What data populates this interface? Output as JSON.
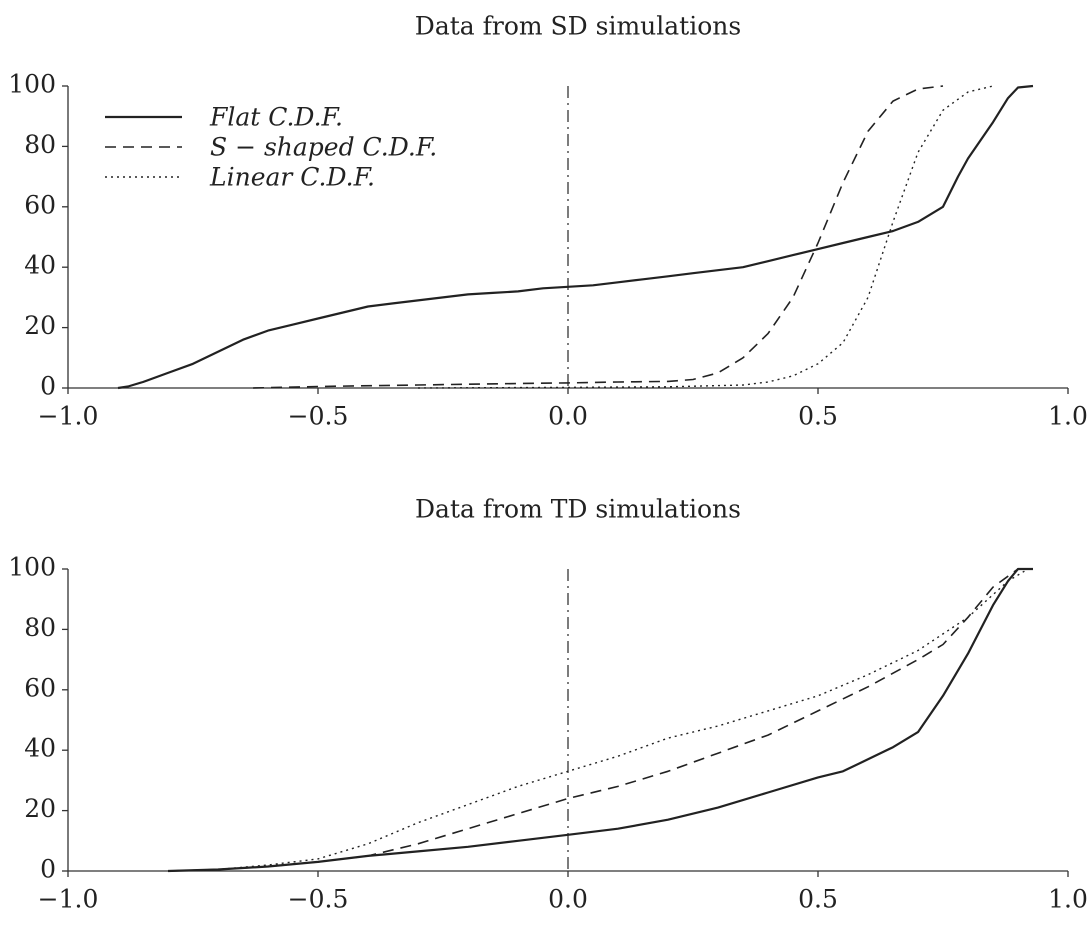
{
  "chart_data": [
    {
      "type": "line",
      "title": "Data from SD simulations",
      "xlabel": "",
      "ylabel": "",
      "xlim": [
        -1.0,
        1.0
      ],
      "ylim": [
        0,
        100
      ],
      "x_ticks": [
        "−1.0",
        "−0.5",
        "0.0",
        "0.5",
        "1.0"
      ],
      "y_ticks": [
        "0",
        "20",
        "40",
        "60",
        "80",
        "100"
      ],
      "reference_line": {
        "x": 0.0,
        "style": "dashdot"
      },
      "legend": {
        "placement": "top-left",
        "entries": [
          "Flat C.D.F.",
          "S − shaped C.D.F.",
          "Linear C.D.F."
        ]
      },
      "series": [
        {
          "name": "Flat C.D.F.",
          "style": "solid",
          "x": [
            -0.9,
            -0.88,
            -0.85,
            -0.8,
            -0.75,
            -0.7,
            -0.65,
            -0.6,
            -0.55,
            -0.5,
            -0.45,
            -0.4,
            -0.35,
            -0.3,
            -0.25,
            -0.2,
            -0.15,
            -0.1,
            -0.05,
            0.0,
            0.05,
            0.1,
            0.15,
            0.2,
            0.25,
            0.3,
            0.35,
            0.4,
            0.45,
            0.5,
            0.55,
            0.6,
            0.65,
            0.7,
            0.75,
            0.78,
            0.8,
            0.85,
            0.88,
            0.9,
            0.93
          ],
          "y": [
            0,
            0.5,
            2,
            5,
            8,
            12,
            16,
            19,
            21,
            23,
            25,
            27,
            28,
            29,
            30,
            31,
            31.5,
            32,
            33,
            33.5,
            34,
            35,
            36,
            37,
            38,
            39,
            40,
            42,
            44,
            46,
            48,
            50,
            52,
            55,
            60,
            70,
            76,
            88,
            96,
            99.5,
            100
          ]
        },
        {
          "name": "S − shaped C.D.F.",
          "style": "dashed",
          "x": [
            -0.63,
            -0.5,
            -0.3,
            -0.1,
            0.0,
            0.1,
            0.2,
            0.25,
            0.3,
            0.35,
            0.4,
            0.45,
            0.5,
            0.55,
            0.6,
            0.65,
            0.7,
            0.75
          ],
          "y": [
            0,
            0.5,
            1,
            1.5,
            1.7,
            2,
            2.2,
            2.8,
            5,
            10,
            18,
            30,
            48,
            68,
            85,
            95,
            99,
            100
          ]
        },
        {
          "name": "Linear C.D.F.",
          "style": "dotted",
          "x": [
            -0.3,
            0.0,
            0.2,
            0.35,
            0.4,
            0.45,
            0.5,
            0.55,
            0.6,
            0.65,
            0.7,
            0.75,
            0.8,
            0.85
          ],
          "y": [
            0,
            0.2,
            0.4,
            1,
            2,
            4,
            8,
            15,
            30,
            55,
            78,
            92,
            98,
            100
          ]
        }
      ]
    },
    {
      "type": "line",
      "title": "Data from TD simulations",
      "xlabel": "",
      "ylabel": "",
      "xlim": [
        -1.0,
        1.0
      ],
      "ylim": [
        0,
        100
      ],
      "x_ticks": [
        "−1.0",
        "−0.5",
        "0.0",
        "0.5",
        "1.0"
      ],
      "y_ticks": [
        "0",
        "20",
        "40",
        "60",
        "80",
        "100"
      ],
      "reference_line": {
        "x": 0.0,
        "style": "dashdot"
      },
      "series": [
        {
          "name": "Flat C.D.F.",
          "style": "solid",
          "x": [
            -0.8,
            -0.7,
            -0.6,
            -0.5,
            -0.4,
            -0.3,
            -0.2,
            -0.1,
            0.0,
            0.1,
            0.2,
            0.3,
            0.4,
            0.5,
            0.55,
            0.6,
            0.65,
            0.7,
            0.75,
            0.8,
            0.85,
            0.88,
            0.9,
            0.93
          ],
          "y": [
            0,
            0.5,
            1.5,
            3,
            5,
            6.5,
            8,
            10,
            12,
            14,
            17,
            21,
            26,
            31,
            33,
            37,
            41,
            46,
            58,
            72,
            88,
            96,
            100,
            100
          ]
        },
        {
          "name": "S − shaped C.D.F.",
          "style": "dashed",
          "x": [
            -0.8,
            -0.7,
            -0.6,
            -0.5,
            -0.4,
            -0.3,
            -0.2,
            -0.1,
            0.0,
            0.1,
            0.2,
            0.3,
            0.4,
            0.5,
            0.6,
            0.7,
            0.75,
            0.8,
            0.85,
            0.9,
            0.93
          ],
          "y": [
            0,
            0.5,
            1.5,
            3,
            5,
            9,
            14,
            19,
            24,
            28,
            33,
            39,
            45,
            53,
            61,
            70,
            75,
            84,
            94,
            100,
            100
          ]
        },
        {
          "name": "Linear C.D.F.",
          "style": "dotted",
          "x": [
            -0.8,
            -0.7,
            -0.6,
            -0.5,
            -0.4,
            -0.3,
            -0.2,
            -0.1,
            0.0,
            0.1,
            0.2,
            0.3,
            0.4,
            0.5,
            0.6,
            0.7,
            0.8,
            0.88,
            0.92
          ],
          "y": [
            0,
            0.5,
            2,
            4,
            9,
            16,
            22,
            28,
            33,
            38,
            44,
            48,
            53,
            58,
            65,
            73,
            84,
            96,
            100
          ]
        }
      ]
    }
  ]
}
